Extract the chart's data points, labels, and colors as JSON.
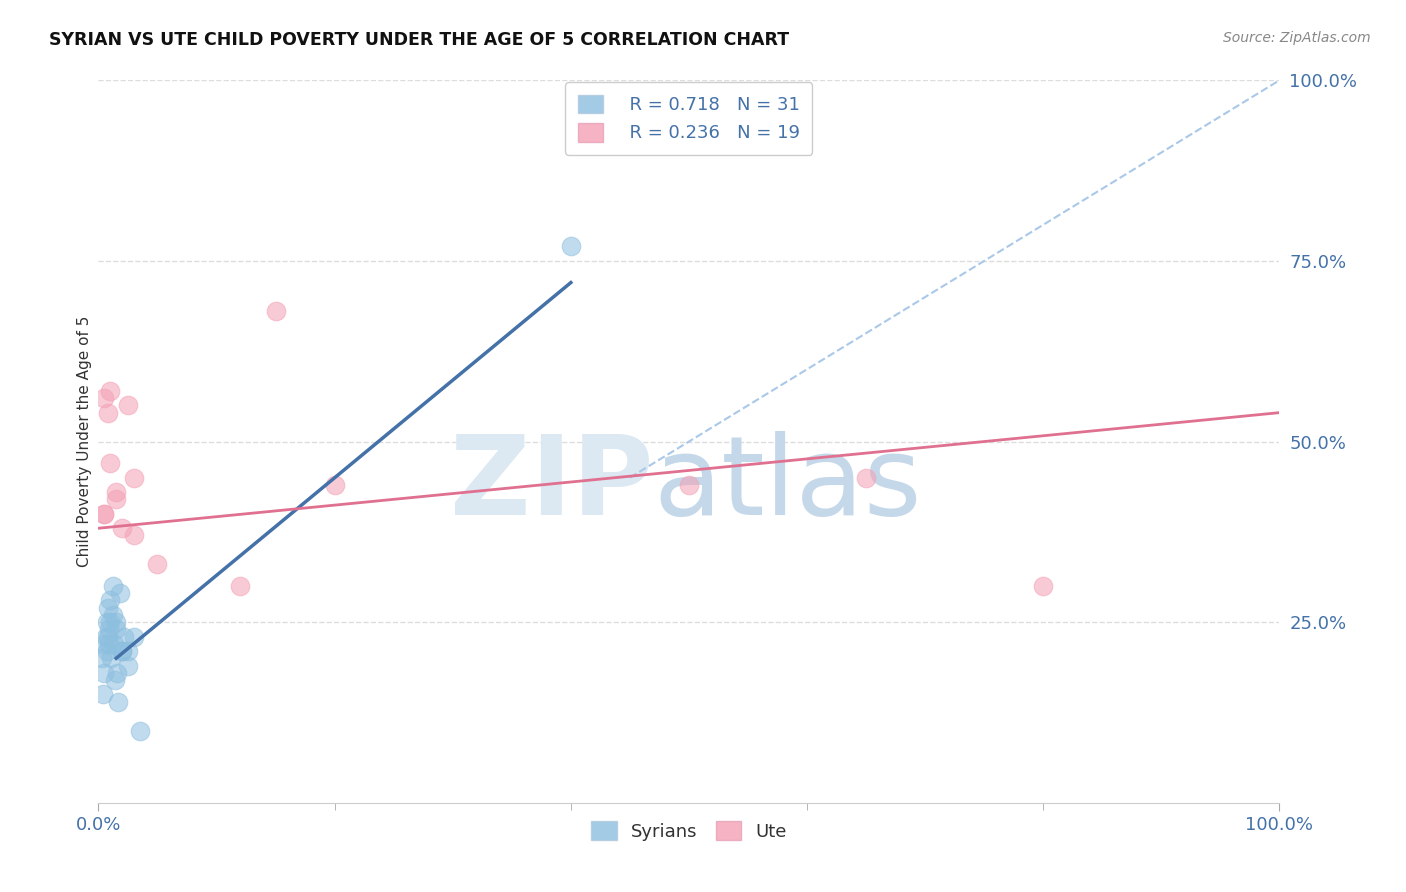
{
  "title": "SYRIAN VS UTE CHILD POVERTY UNDER THE AGE OF 5 CORRELATION CHART",
  "source": "Source: ZipAtlas.com",
  "ylabel": "Child Poverty Under the Age of 5",
  "background_color": "#ffffff",
  "blue_color": "#8dbfdf",
  "pink_color": "#f4a0b5",
  "blue_line_color": "#4472a8",
  "pink_line_color": "#e07090",
  "diag_line_color": "#aac8e8",
  "legend_R_blue": "0.718",
  "legend_N_blue": "31",
  "legend_R_pink": "0.236",
  "legend_N_pink": "19",
  "blue_scatter_x": [
    0.3,
    0.5,
    0.7,
    0.8,
    0.9,
    1.0,
    1.1,
    1.2,
    1.3,
    1.4,
    1.5,
    1.6,
    1.7,
    1.8,
    2.0,
    2.2,
    2.5,
    0.4,
    0.6,
    0.8,
    1.0,
    1.2,
    1.5,
    2.0,
    2.5,
    3.0,
    0.5,
    0.7,
    0.9,
    40.0,
    3.5
  ],
  "blue_scatter_y": [
    20,
    22,
    21,
    23,
    24,
    25,
    20,
    26,
    22,
    17,
    25,
    18,
    14,
    29,
    21,
    23,
    21,
    15,
    23,
    27,
    28,
    30,
    24,
    21,
    19,
    23,
    18,
    25,
    22,
    77,
    10
  ],
  "pink_scatter_x": [
    0.5,
    0.8,
    1.0,
    1.5,
    2.5,
    3.0,
    0.5,
    1.5,
    3.0,
    5.0,
    12.0,
    20.0,
    50.0,
    65.0,
    80.0,
    15.0,
    2.0,
    1.0,
    0.5
  ],
  "pink_scatter_y": [
    56,
    54,
    57,
    42,
    55,
    37,
    40,
    43,
    45,
    33,
    30,
    44,
    44,
    45,
    30,
    68,
    38,
    47,
    40
  ],
  "blue_line_x_start": 1.5,
  "blue_line_y_start": 20,
  "blue_line_x_end": 40,
  "blue_line_y_end": 72,
  "pink_line_x_start": 0,
  "pink_line_y_start": 38,
  "pink_line_x_end": 100,
  "pink_line_y_end": 54,
  "diag_line_x_start": 45,
  "diag_line_y_start": 45,
  "diag_line_x_end": 100,
  "diag_line_y_end": 100,
  "xlim": [
    0,
    100
  ],
  "ylim": [
    0,
    100
  ],
  "yticks": [
    25,
    50,
    75,
    100
  ],
  "ytick_labels": [
    "25.0%",
    "50.0%",
    "75.0%",
    "100.0%"
  ],
  "xtick_labels_major": [
    "0.0%",
    "100.0%"
  ],
  "xtick_major": [
    0,
    100
  ],
  "xtick_minor": [
    20,
    40,
    60,
    80
  ],
  "grid_color": "#dddddd",
  "grid_linestyle": "--",
  "tick_color": "#aaaaaa",
  "axis_label_color": "#4472a8",
  "spine_color": "#cccccc"
}
